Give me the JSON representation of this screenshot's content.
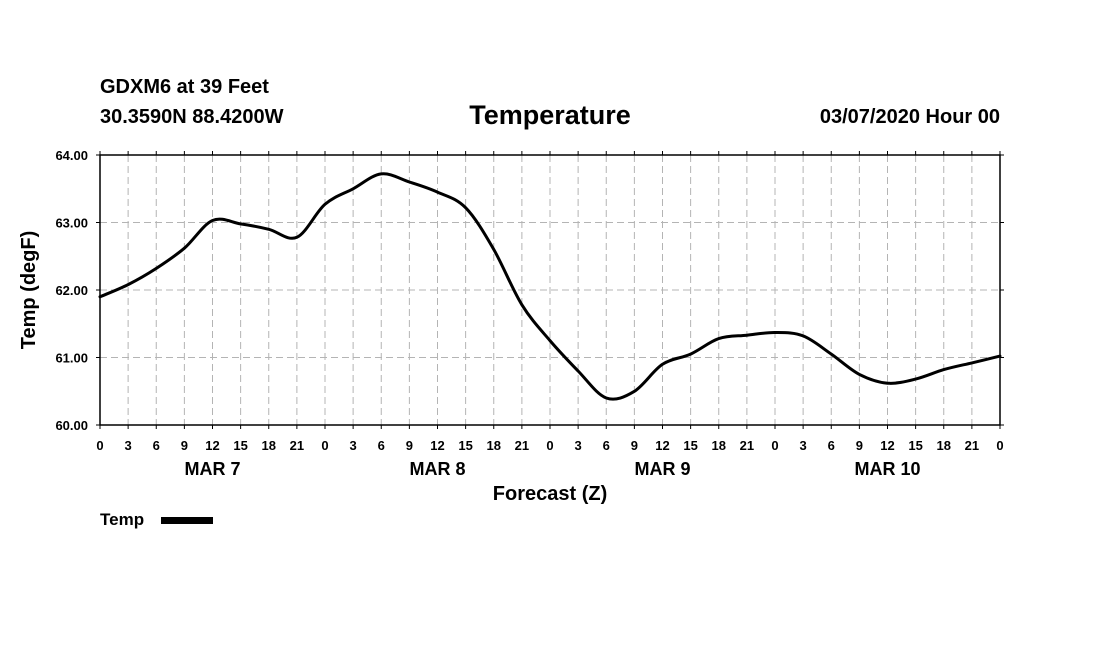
{
  "header": {
    "station": "GDXM6 at 39 Feet",
    "coords": "30.3590N 88.4200W",
    "title": "Temperature",
    "datetime": "03/07/2020 Hour 00"
  },
  "chart_data": {
    "type": "line",
    "title": "Temperature",
    "xlabel": "Forecast (Z)",
    "ylabel": "Temp (degF)",
    "ylim": [
      60.0,
      64.0
    ],
    "yticks": [
      "60.00",
      "61.00",
      "62.00",
      "63.00",
      "64.00"
    ],
    "x_unit": "hours from 03/07/2020 00Z",
    "xlim": [
      0,
      96
    ],
    "xtick_hours": [
      0,
      3,
      6,
      9,
      12,
      15,
      18,
      21,
      24,
      27,
      30,
      33,
      36,
      39,
      42,
      45,
      48,
      51,
      54,
      57,
      60,
      63,
      66,
      69,
      72,
      75,
      78,
      81,
      84,
      87,
      90,
      93,
      96
    ],
    "xtick_labels": [
      "0",
      "3",
      "6",
      "9",
      "12",
      "15",
      "18",
      "21",
      "0",
      "3",
      "6",
      "9",
      "12",
      "15",
      "18",
      "21",
      "0",
      "3",
      "6",
      "9",
      "12",
      "15",
      "18",
      "21",
      "0",
      "3",
      "6",
      "9",
      "12",
      "15",
      "18",
      "21",
      "0"
    ],
    "day_labels": [
      {
        "label": "MAR 7",
        "hour": 12
      },
      {
        "label": "MAR 8",
        "hour": 36
      },
      {
        "label": "MAR 9",
        "hour": 60
      },
      {
        "label": "MAR 10",
        "hour": 84
      }
    ],
    "grid": true,
    "legend": "bottom-left",
    "series": [
      {
        "name": "Temp",
        "color": "#000000",
        "x": [
          0,
          3,
          6,
          9,
          12,
          15,
          18,
          21,
          24,
          27,
          30,
          33,
          36,
          39,
          42,
          45,
          48,
          51,
          54,
          57,
          60,
          63,
          66,
          69,
          72,
          75,
          78,
          81,
          84,
          87,
          90,
          93,
          96
        ],
        "values": [
          61.9,
          62.08,
          62.32,
          62.62,
          63.03,
          62.98,
          62.9,
          62.78,
          63.27,
          63.5,
          63.72,
          63.6,
          63.45,
          63.22,
          62.6,
          61.78,
          61.25,
          60.8,
          60.4,
          60.5,
          60.9,
          61.05,
          61.28,
          61.33,
          61.37,
          61.32,
          61.05,
          60.75,
          60.62,
          60.68,
          60.82,
          60.92,
          61.02
        ]
      }
    ]
  }
}
